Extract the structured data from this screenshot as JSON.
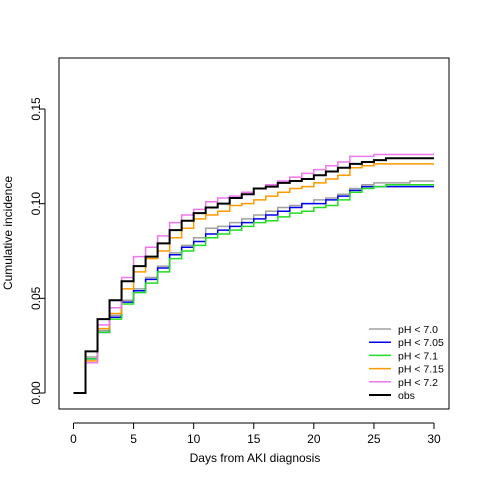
{
  "chart_data": {
    "type": "line",
    "step": true,
    "xlabel": "Days from AKI diagnosis",
    "ylabel": "Cumulative incidence",
    "xlim": [
      0,
      30
    ],
    "ylim": [
      0,
      0.175
    ],
    "xticks": [
      0,
      5,
      10,
      15,
      20,
      25,
      30
    ],
    "xtick_labels": [
      "0",
      "5",
      "10",
      "15",
      "20",
      "25",
      "30"
    ],
    "yticks": [
      0.0,
      0.05,
      0.1,
      0.15
    ],
    "ytick_labels": [
      "0.00",
      "0.05",
      "0.10",
      "0.15"
    ],
    "grid": false,
    "legend_position": "bottom-right",
    "x": [
      0,
      1,
      2,
      3,
      4,
      5,
      6,
      7,
      8,
      9,
      10,
      11,
      12,
      13,
      14,
      15,
      16,
      17,
      18,
      19,
      20,
      21,
      22,
      23,
      24,
      25,
      26,
      27,
      28,
      29,
      30
    ],
    "series": [
      {
        "name": "pH < 7.0",
        "color": "#a0a0a0",
        "width": 1.5,
        "values": [
          0,
          0.019,
          0.033,
          0.041,
          0.049,
          0.055,
          0.061,
          0.067,
          0.074,
          0.078,
          0.082,
          0.087,
          0.088,
          0.09,
          0.092,
          0.094,
          0.096,
          0.098,
          0.099,
          0.1,
          0.102,
          0.103,
          0.105,
          0.108,
          0.11,
          0.111,
          0.111,
          0.111,
          0.112,
          0.112,
          0.112
        ]
      },
      {
        "name": "pH < 7.05",
        "color": "#0000ee",
        "width": 1.5,
        "values": [
          0,
          0.018,
          0.032,
          0.04,
          0.048,
          0.054,
          0.06,
          0.066,
          0.073,
          0.077,
          0.08,
          0.084,
          0.086,
          0.088,
          0.09,
          0.092,
          0.094,
          0.096,
          0.098,
          0.1,
          0.1,
          0.102,
          0.104,
          0.107,
          0.109,
          0.109,
          0.109,
          0.109,
          0.109,
          0.109,
          0.109
        ]
      },
      {
        "name": "pH < 7.1",
        "color": "#22dd22",
        "width": 1.5,
        "values": [
          0,
          0.018,
          0.032,
          0.039,
          0.047,
          0.053,
          0.058,
          0.064,
          0.071,
          0.075,
          0.078,
          0.082,
          0.084,
          0.086,
          0.088,
          0.09,
          0.091,
          0.093,
          0.095,
          0.096,
          0.098,
          0.099,
          0.102,
          0.106,
          0.108,
          0.109,
          0.11,
          0.11,
          0.11,
          0.11,
          0.11
        ]
      },
      {
        "name": "pH < 7.15",
        "color": "#ff9900",
        "width": 1.5,
        "values": [
          0,
          0.017,
          0.034,
          0.042,
          0.055,
          0.064,
          0.071,
          0.075,
          0.082,
          0.087,
          0.092,
          0.094,
          0.096,
          0.099,
          0.1,
          0.102,
          0.104,
          0.106,
          0.108,
          0.109,
          0.111,
          0.113,
          0.115,
          0.119,
          0.12,
          0.121,
          0.121,
          0.121,
          0.121,
          0.121,
          0.121
        ]
      },
      {
        "name": "pH < 7.2",
        "color": "#ee77ee",
        "width": 1.5,
        "values": [
          0,
          0.016,
          0.036,
          0.045,
          0.061,
          0.072,
          0.077,
          0.083,
          0.09,
          0.094,
          0.097,
          0.101,
          0.103,
          0.104,
          0.106,
          0.108,
          0.11,
          0.112,
          0.114,
          0.116,
          0.118,
          0.12,
          0.122,
          0.125,
          0.125,
          0.126,
          0.126,
          0.126,
          0.126,
          0.126,
          0.126
        ]
      },
      {
        "name": "obs",
        "color": "#000000",
        "width": 2,
        "values": [
          0,
          0.022,
          0.039,
          0.049,
          0.059,
          0.067,
          0.072,
          0.079,
          0.086,
          0.091,
          0.095,
          0.098,
          0.1,
          0.103,
          0.105,
          0.108,
          0.109,
          0.111,
          0.112,
          0.113,
          0.115,
          0.117,
          0.119,
          0.121,
          0.122,
          0.123,
          0.124,
          0.124,
          0.124,
          0.124,
          0.124
        ]
      }
    ]
  }
}
